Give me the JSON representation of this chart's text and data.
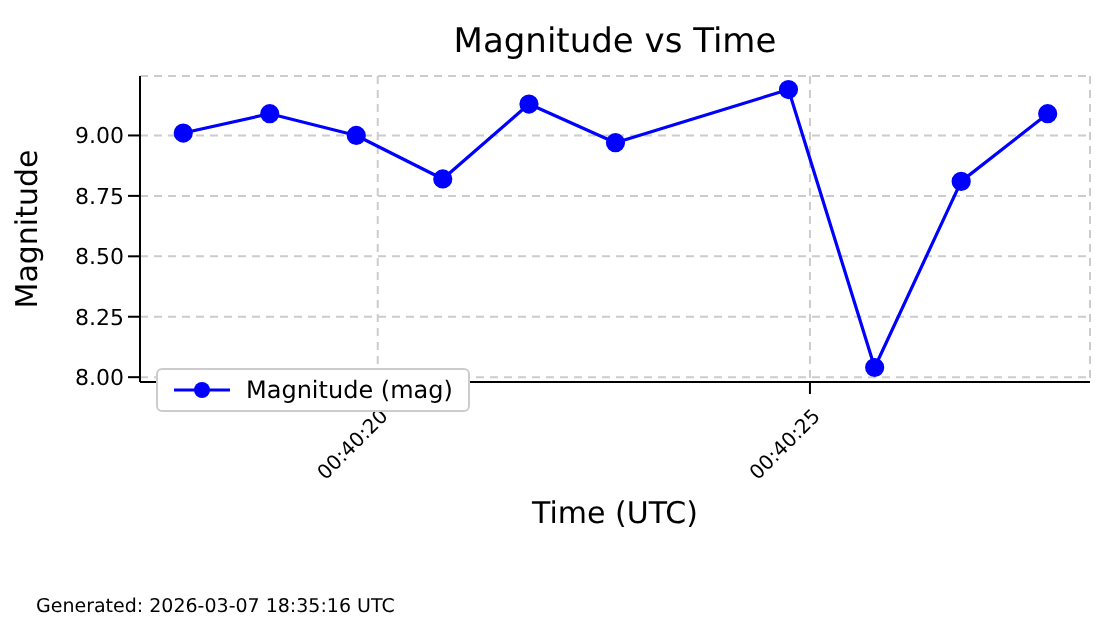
{
  "chart_data": {
    "type": "line",
    "title": "Magnitude vs Time",
    "xlabel": "Time (UTC)",
    "ylabel": "Magnitude",
    "annotations": [
      "Generated: 2026-03-07 18:35:16 UTC"
    ],
    "x": [
      0.671597,
      0.671875,
      0.672153,
      0.672431,
      0.672708,
      0.672986,
      0.673542,
      0.673819,
      0.674097,
      0.674375
    ],
    "series": [
      {
        "name": "Magnitude (mag)",
        "color": "#0000ff",
        "values": [
          9.01,
          9.09,
          9.0,
          8.82,
          9.13,
          8.97,
          9.19,
          8.04,
          8.81,
          9.09
        ]
      }
    ],
    "xlim": [
      0.671458,
      0.674511
    ],
    "xticks": [
      {
        "value": 0.672222,
        "label": "00:40:20"
      },
      {
        "value": 0.673611,
        "label": "00:40:25"
      }
    ],
    "ylim": [
      7.98,
      9.246
    ],
    "yticks": [
      {
        "value": 8.0,
        "label": "8.00"
      },
      {
        "value": 8.25,
        "label": "8.25"
      },
      {
        "value": 8.5,
        "label": "8.50"
      },
      {
        "value": 8.75,
        "label": "8.75"
      },
      {
        "value": 9.0,
        "label": "9.00"
      }
    ],
    "grid": true,
    "legend": "bottom left",
    "marker": "circle",
    "line_style": "solid"
  }
}
